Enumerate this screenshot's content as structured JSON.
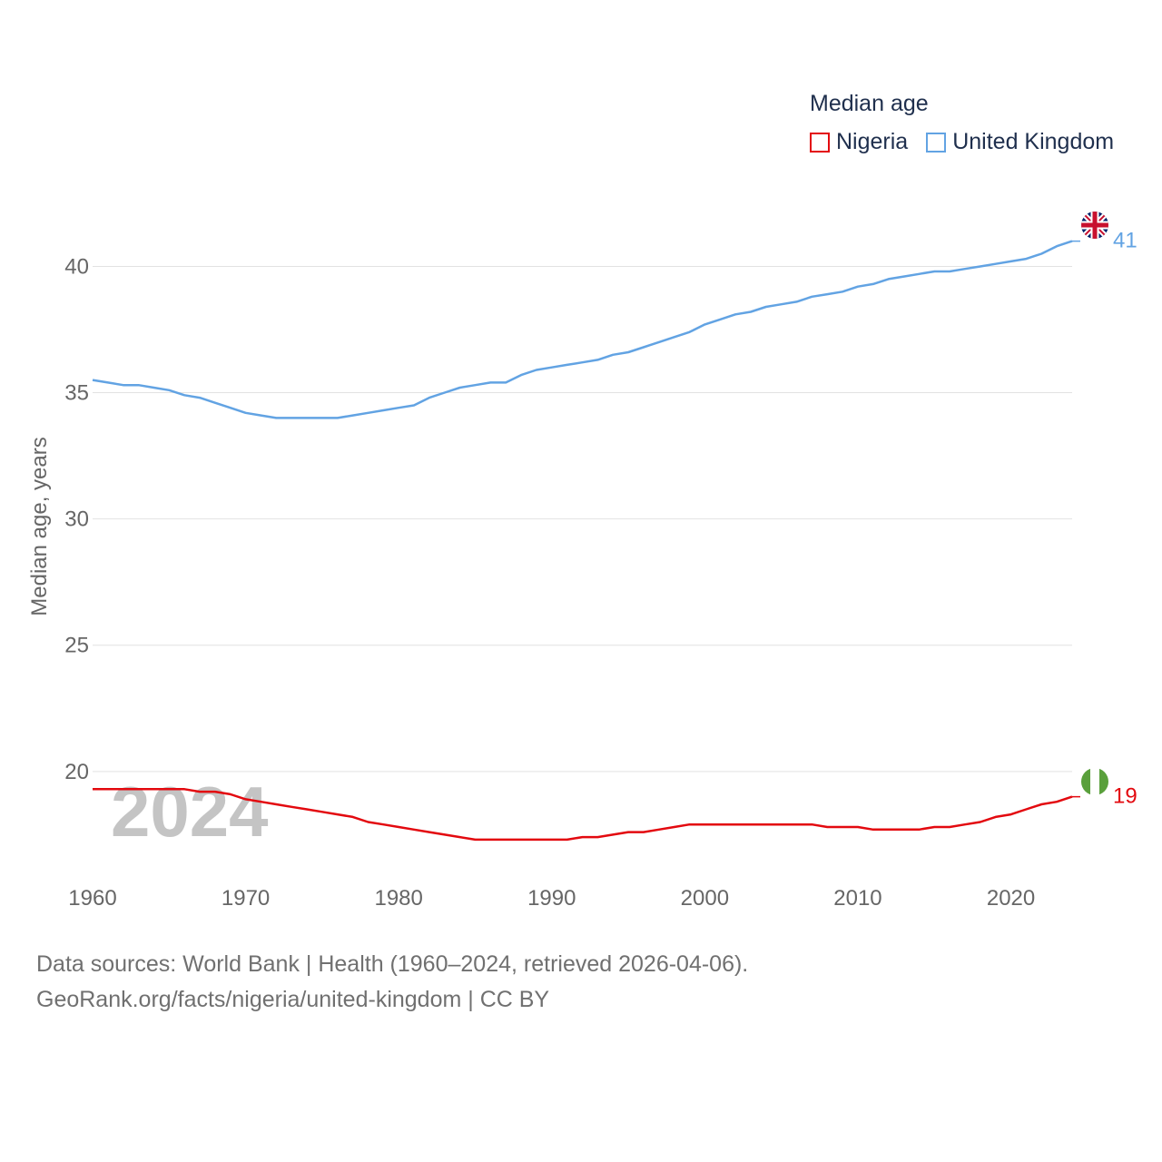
{
  "legend": {
    "title": "Median age",
    "items": [
      {
        "name": "Nigeria",
        "color": "#e3090f"
      },
      {
        "name": "United Kingdom",
        "color": "#62a3e3"
      }
    ]
  },
  "footer": {
    "line1": "Data sources: World Bank | Health (1960–2024, retrieved 2026-04-06).",
    "line2": "GeoRank.org/facts/nigeria/united-kingdom | CC BY"
  },
  "chart_data": {
    "type": "line",
    "title": "Median age",
    "ylabel": "Median age, years",
    "xlabel": "",
    "year_label": "2024",
    "xlim": [
      1960,
      2024
    ],
    "ylim": [
      15.5,
      43
    ],
    "x_ticks": [
      1960,
      1970,
      1980,
      1990,
      2000,
      2010,
      2020
    ],
    "y_ticks": [
      20,
      25,
      30,
      35,
      40
    ],
    "x": [
      1960,
      1961,
      1962,
      1963,
      1964,
      1965,
      1966,
      1967,
      1968,
      1969,
      1970,
      1971,
      1972,
      1973,
      1974,
      1975,
      1976,
      1977,
      1978,
      1979,
      1980,
      1981,
      1982,
      1983,
      1984,
      1985,
      1986,
      1987,
      1988,
      1989,
      1990,
      1991,
      1992,
      1993,
      1994,
      1995,
      1996,
      1997,
      1998,
      1999,
      2000,
      2001,
      2002,
      2003,
      2004,
      2005,
      2006,
      2007,
      2008,
      2009,
      2010,
      2011,
      2012,
      2013,
      2014,
      2015,
      2016,
      2017,
      2018,
      2019,
      2020,
      2021,
      2022,
      2023,
      2024
    ],
    "series": [
      {
        "name": "United Kingdom",
        "color": "#62a3e3",
        "end_label": "41",
        "flag": "uk-flag",
        "values": [
          35.5,
          35.4,
          35.3,
          35.3,
          35.2,
          35.1,
          34.9,
          34.8,
          34.6,
          34.4,
          34.2,
          34.1,
          34.0,
          34.0,
          34.0,
          34.0,
          34.0,
          34.1,
          34.2,
          34.3,
          34.4,
          34.5,
          34.8,
          35.0,
          35.2,
          35.3,
          35.4,
          35.4,
          35.7,
          35.9,
          36.0,
          36.1,
          36.2,
          36.3,
          36.5,
          36.6,
          36.8,
          37.0,
          37.2,
          37.4,
          37.7,
          37.9,
          38.1,
          38.2,
          38.4,
          38.5,
          38.6,
          38.8,
          38.9,
          39.0,
          39.2,
          39.3,
          39.5,
          39.6,
          39.7,
          39.8,
          39.8,
          39.9,
          40.0,
          40.1,
          40.2,
          40.3,
          40.5,
          40.8,
          41.0
        ]
      },
      {
        "name": "Nigeria",
        "color": "#e3090f",
        "end_label": "19",
        "flag": "nigeria-flag",
        "values": [
          19.3,
          19.3,
          19.3,
          19.3,
          19.3,
          19.3,
          19.3,
          19.2,
          19.2,
          19.1,
          18.9,
          18.8,
          18.7,
          18.6,
          18.5,
          18.4,
          18.3,
          18.2,
          18.0,
          17.9,
          17.8,
          17.7,
          17.6,
          17.5,
          17.4,
          17.3,
          17.3,
          17.3,
          17.3,
          17.3,
          17.3,
          17.3,
          17.4,
          17.4,
          17.5,
          17.6,
          17.6,
          17.7,
          17.8,
          17.9,
          17.9,
          17.9,
          17.9,
          17.9,
          17.9,
          17.9,
          17.9,
          17.9,
          17.8,
          17.8,
          17.8,
          17.7,
          17.7,
          17.7,
          17.7,
          17.8,
          17.8,
          17.9,
          18.0,
          18.2,
          18.3,
          18.5,
          18.7,
          18.8,
          19.0
        ]
      }
    ]
  }
}
